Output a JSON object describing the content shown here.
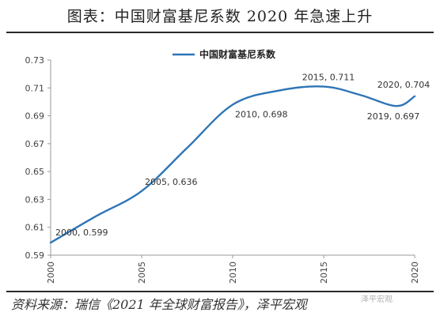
{
  "figure": {
    "title": "图表：中国财富基尼系数 2020 年急速上升",
    "source": "资料来源：瑞信《2021 年全球财富报告》，泽平宏观",
    "watermark": "泽平宏观"
  },
  "chart_data": {
    "type": "line",
    "title": "",
    "xlabel": "",
    "ylabel": "",
    "xlim": [
      2000,
      2020
    ],
    "ylim": [
      0.59,
      0.73
    ],
    "x_ticks": [
      "2000",
      "2005",
      "2010",
      "2015",
      "2020"
    ],
    "y_ticks": [
      "0.59",
      "0.61",
      "0.63",
      "0.65",
      "0.67",
      "0.69",
      "0.71",
      "0.73"
    ],
    "grid": false,
    "legend_position": "top-center",
    "series": [
      {
        "name": "中国财富基尼系数",
        "color": "#2e75b6",
        "x": [
          2000,
          2002.5,
          2005,
          2007.5,
          2010,
          2012.5,
          2015,
          2017,
          2019,
          2020
        ],
        "y": [
          0.599,
          0.618,
          0.636,
          0.667,
          0.698,
          0.708,
          0.711,
          0.705,
          0.697,
          0.704
        ]
      }
    ],
    "annotations": [
      {
        "x": 2000,
        "y": 0.599,
        "text": "2000, 0.599"
      },
      {
        "x": 2005,
        "y": 0.636,
        "text": "2005, 0.636"
      },
      {
        "x": 2010,
        "y": 0.698,
        "text": "2010, 0.698"
      },
      {
        "x": 2015,
        "y": 0.711,
        "text": "2015, 0.711"
      },
      {
        "x": 2019,
        "y": 0.697,
        "text": "2019, 0.697"
      },
      {
        "x": 2020,
        "y": 0.704,
        "text": "2020, 0.704"
      }
    ]
  }
}
